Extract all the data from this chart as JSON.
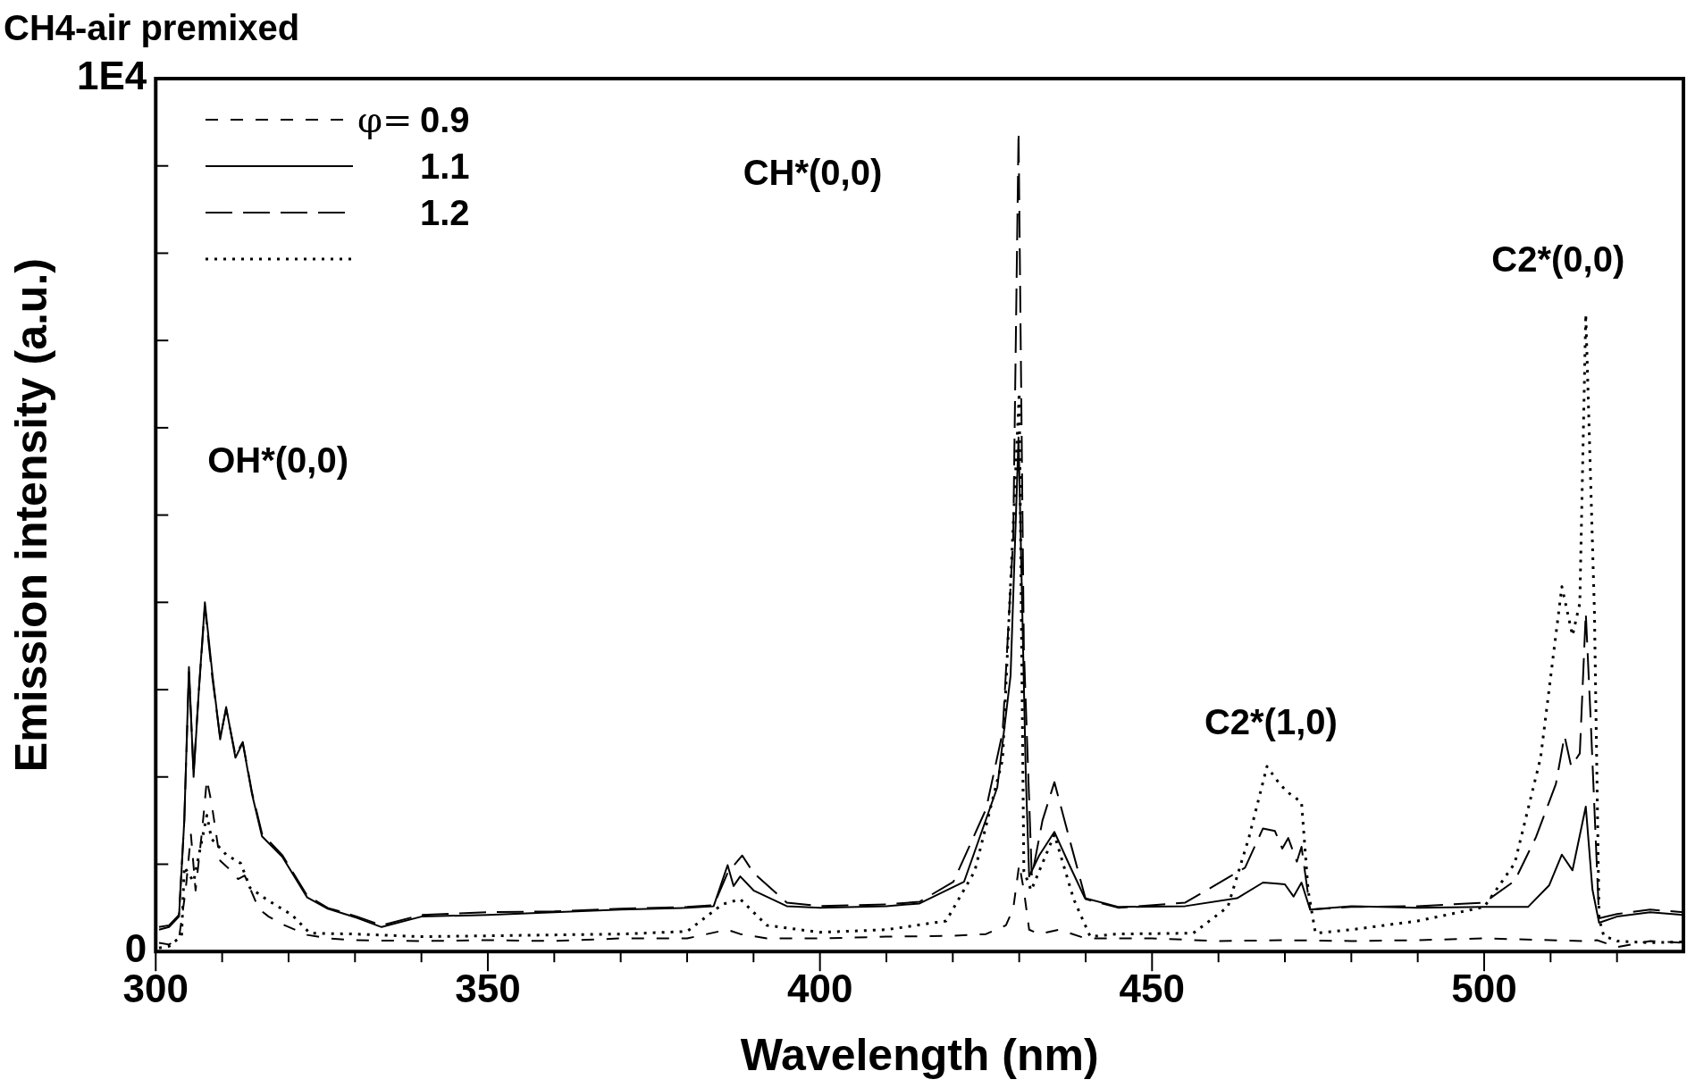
{
  "chart_data": {
    "type": "line",
    "title": "CH4-air premixed",
    "xlabel": "Wavelength (nm)",
    "ylabel": "Emission intensity (a.u.)",
    "legend_title": "φ=",
    "legend": "top left",
    "grid": false,
    "marker": "none",
    "xlim": [
      300,
      530
    ],
    "ylim": [
      0,
      10000
    ],
    "xticks": [
      300,
      {
        "value": 310,
        "label": null
      },
      {
        "value": 320,
        "label": null
      },
      {
        "value": 330,
        "label": null
      },
      {
        "value": 340,
        "label": null
      },
      350,
      {
        "value": 360,
        "label": null
      },
      {
        "value": 370,
        "label": null
      },
      {
        "value": 380,
        "label": null
      },
      {
        "value": 390,
        "label": null
      },
      400,
      {
        "value": 410,
        "label": null
      },
      {
        "value": 420,
        "label": null
      },
      {
        "value": 430,
        "label": null
      },
      {
        "value": 440,
        "label": null
      },
      450,
      {
        "value": 460,
        "label": null
      },
      {
        "value": 470,
        "label": null
      },
      {
        "value": 480,
        "label": null
      },
      {
        "value": 490,
        "label": null
      },
      500,
      {
        "value": 510,
        "label": null
      },
      {
        "value": 520,
        "label": null
      }
    ],
    "yticks": [
      0,
      {
        "value": 1000,
        "label": null
      },
      {
        "value": 2000,
        "label": null
      },
      {
        "value": 3000,
        "label": null
      },
      {
        "value": 4000,
        "label": null
      },
      {
        "value": 5000,
        "label": null
      },
      {
        "value": 6000,
        "label": null
      },
      {
        "value": 7000,
        "label": null
      },
      {
        "value": 8000,
        "label": null
      },
      {
        "value": 9000,
        "label": null
      },
      {
        "value": 10000,
        "label": "1E4"
      }
    ],
    "annotations": [
      "OH*(0,0)",
      "CH*(0,0)",
      "C2*(1,0)",
      "C2*(0,0)"
    ],
    "series": [
      {
        "name": "0.9",
        "color": "#000000",
        "line_style": "dashed",
        "x": [
          300.5,
          302,
          303.5,
          304.5,
          305.3,
          306,
          307,
          307.7,
          308.4,
          309.7,
          311,
          312.4,
          313.4,
          315.5,
          317,
          319.1,
          322.8,
          326,
          330,
          340,
          350,
          360,
          370,
          380,
          386,
          388,
          392,
          400,
          410,
          420,
          425,
          428,
          429.1,
          430,
          430.7,
          431.5,
          433,
          436,
          440,
          450,
          460,
          470,
          480,
          490,
          500,
          510,
          515,
          517,
          520,
          525,
          530
        ],
        "values": [
          100,
          80,
          150,
          700,
          1340,
          700,
          1400,
          1970,
          1700,
          1040,
          950,
          830,
          870,
          490,
          400,
          310,
          190,
          150,
          130,
          120,
          130,
          120,
          150,
          150,
          250,
          200,
          150,
          150,
          170,
          180,
          200,
          300,
          490,
          1000,
          700,
          250,
          200,
          250,
          150,
          150,
          120,
          130,
          120,
          130,
          150,
          130,
          120,
          130,
          50,
          120,
          100
        ]
      },
      {
        "name": "1.1",
        "color": "#000000",
        "line_style": "solid",
        "x": [
          300.5,
          302,
          303.5,
          304.3,
          305,
          305.7,
          306.5,
          307.4,
          308.5,
          309.7,
          310.6,
          312,
          313.1,
          314.5,
          316,
          319.1,
          322.8,
          325.9,
          330.3,
          334,
          340,
          350,
          360,
          370,
          380,
          384,
          386.1,
          387,
          388,
          390,
          395,
          400,
          410,
          415,
          421.7,
          426.7,
          428.7,
          429.9,
          431,
          431.5,
          433,
          435.3,
          437.5,
          439.9,
          445,
          455,
          462.8,
          466.7,
          468.5,
          470,
          471.3,
          472.5,
          473.8,
          480,
          490,
          500,
          506.6,
          509.8,
          511.7,
          513.3,
          515.3,
          516.3,
          517.3,
          520,
          525,
          530
        ],
        "values": [
          250,
          280,
          400,
          1500,
          3260,
          2000,
          3000,
          4000,
          3200,
          2430,
          2800,
          2220,
          2390,
          1800,
          1320,
          1080,
          620,
          490,
          385,
          280,
          400,
          420,
          450,
          480,
          500,
          520,
          990,
          750,
          860,
          700,
          520,
          500,
          520,
          550,
          800,
          1880,
          3160,
          5890,
          2000,
          860,
          1100,
          1370,
          1000,
          610,
          510,
          520,
          610,
          790,
          780,
          770,
          630,
          790,
          480,
          520,
          500,
          510,
          510,
          760,
          1110,
          930,
          1660,
          710,
          330,
          400,
          450,
          420
        ]
      },
      {
        "name": "1.2",
        "color": "#000000",
        "line_style": "dashed",
        "x": [
          300.5,
          302,
          303.5,
          304.3,
          305,
          305.7,
          306.5,
          307.4,
          308.5,
          309.7,
          310.6,
          312,
          313.1,
          314.5,
          316,
          319.1,
          322.8,
          325.9,
          330.3,
          334,
          340,
          350,
          360,
          370,
          380,
          384,
          386.1,
          388.3,
          390,
          395,
          400,
          410,
          415,
          420.1,
          425,
          427.5,
          429.1,
          429.9,
          430.7,
          431.9,
          433.5,
          435.3,
          437.7,
          440,
          445,
          455,
          464,
          466.7,
          468.5,
          469.6,
          470.5,
          471.8,
          472.5,
          473.8,
          480,
          490,
          500,
          504.6,
          507.8,
          510.8,
          512.1,
          513.1,
          514.4,
          515.3,
          516,
          517.3,
          520,
          525,
          530
        ],
        "values": [
          280,
          300,
          420,
          1500,
          3200,
          2050,
          3000,
          3950,
          3150,
          2450,
          2780,
          2250,
          2400,
          1820,
          1350,
          1100,
          640,
          500,
          400,
          300,
          420,
          450,
          460,
          490,
          510,
          530,
          900,
          1100,
          900,
          560,
          520,
          540,
          570,
          800,
          1630,
          2510,
          4740,
          9390,
          3470,
          860,
          1500,
          1940,
          1250,
          600,
          500,
          560,
          960,
          1410,
          1380,
          1180,
          1300,
          1030,
          1200,
          480,
          510,
          520,
          560,
          810,
          1310,
          1920,
          2470,
          2120,
          2270,
          3880,
          2720,
          380,
          430,
          480,
          450
        ]
      },
      {
        "color": "#000000",
        "line_style": "dotted",
        "x": [
          300.5,
          302,
          303.9,
          304.3,
          305.7,
          307.7,
          308.4,
          310.6,
          312.8,
          314.2,
          316.8,
          320.5,
          323.2,
          330,
          340,
          350,
          360,
          370,
          380,
          385.3,
          388,
          392,
          400,
          410,
          419,
          423.3,
          427.5,
          430,
          430.7,
          431.8,
          435.3,
          438.2,
          440.7,
          444.5,
          456.2,
          461.4,
          464.6,
          467.3,
          469.2,
          470.5,
          472.5,
          473.5,
          474.6,
          480,
          490,
          500,
          504.6,
          508.5,
          511.7,
          513.3,
          514.4,
          515.3,
          516.6,
          517.3,
          518,
          520,
          525,
          530
        ],
        "values": [
          40,
          60,
          180,
          970,
          800,
          1560,
          1290,
          1110,
          1010,
          730,
          590,
          420,
          210,
          200,
          170,
          180,
          190,
          200,
          230,
          540,
          600,
          300,
          220,
          250,
          350,
          920,
          2200,
          6400,
          920,
          700,
          1340,
          600,
          170,
          200,
          210,
          510,
          1310,
          2120,
          1920,
          1820,
          1710,
          700,
          210,
          250,
          350,
          510,
          1010,
          2220,
          4180,
          3620,
          3990,
          7300,
          3900,
          380,
          180,
          120,
          100,
          110
        ]
      }
    ]
  }
}
